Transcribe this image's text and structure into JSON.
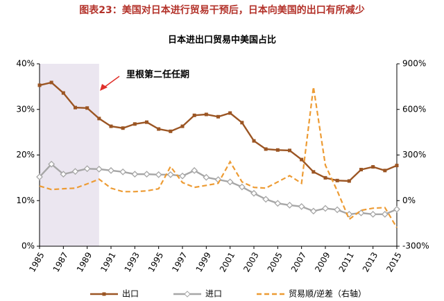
{
  "chart_data": {
    "type": "line",
    "title": "图表23：美国对日本进行贸易干预后，日本向美国的出口有所减少",
    "subtitle": "日本进出口贸易中美国占比",
    "annotation": "里根第二任任期",
    "shade": [
      1985,
      1990
    ],
    "x": [
      1985,
      1986,
      1987,
      1988,
      1989,
      1990,
      1991,
      1992,
      1993,
      1994,
      1995,
      1996,
      1997,
      1998,
      1999,
      2000,
      2001,
      2002,
      2003,
      2004,
      2005,
      2006,
      2007,
      2008,
      2009,
      2010,
      2011,
      2012,
      2013,
      2014,
      2015
    ],
    "xlim": [
      1985,
      2015
    ],
    "xticks": [
      1985,
      1987,
      1989,
      1991,
      1993,
      1995,
      1997,
      1999,
      2001,
      2003,
      2005,
      2007,
      2009,
      2011,
      2013,
      2015
    ],
    "ylim": [
      0,
      40
    ],
    "yticks": [
      {
        "value": 0,
        "label": "0%"
      },
      {
        "value": 10,
        "label": "10%"
      },
      {
        "value": 20,
        "label": "20%"
      },
      {
        "value": 30,
        "label": "30%"
      },
      {
        "value": 40,
        "label": "40%"
      }
    ],
    "y2lim": [
      -300,
      900
    ],
    "y2ticks": [
      {
        "value": -300,
        "label": "-300%"
      },
      {
        "value": 0,
        "label": "0%"
      },
      {
        "value": 300,
        "label": "300%"
      },
      {
        "value": 600,
        "label": "600%"
      },
      {
        "value": 900,
        "label": "900%"
      }
    ],
    "series": [
      {
        "name": "出口",
        "color": "#9b5523",
        "marker": "square",
        "values": [
          35.3,
          35.9,
          33.6,
          30.4,
          30.3,
          28.0,
          26.3,
          25.9,
          26.8,
          27.2,
          25.7,
          25.2,
          26.3,
          28.7,
          28.9,
          28.4,
          29.2,
          27.1,
          23.1,
          21.3,
          21.1,
          21.0,
          19.0,
          16.3,
          15.0,
          14.4,
          14.3,
          16.8,
          17.4,
          16.6,
          17.7
        ]
      },
      {
        "name": "进口",
        "color": "#a6a6a6",
        "marker": "diamond",
        "values": [
          15.2,
          18.0,
          15.8,
          16.4,
          17.0,
          16.9,
          16.6,
          16.3,
          15.8,
          15.8,
          15.7,
          15.7,
          15.4,
          16.6,
          15.1,
          14.6,
          14.1,
          13.0,
          11.6,
          10.3,
          9.4,
          9.0,
          8.7,
          7.7,
          8.3,
          8.0,
          7.0,
          7.3,
          7.0,
          7.0,
          8.1
        ]
      },
      {
        "name": "贸易顺/逆差（右轴）",
        "color": "#ed9b33",
        "dashed": true,
        "axis": "y2",
        "values": [
          96,
          73,
          78,
          82,
          110,
          141,
          82,
          59,
          59,
          64,
          78,
          224,
          119,
          87,
          100,
          114,
          256,
          123,
          87,
          82,
          123,
          164,
          114,
          748,
          233,
          64,
          -123,
          -64,
          -50,
          -46,
          -178
        ]
      }
    ]
  }
}
